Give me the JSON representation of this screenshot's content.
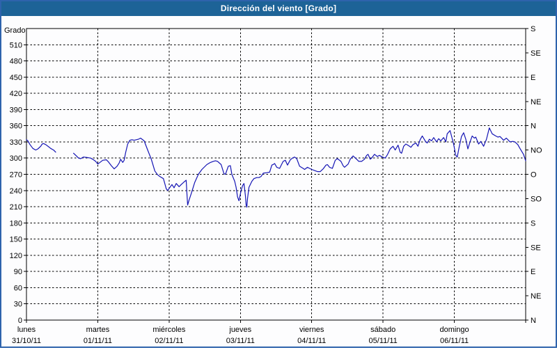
{
  "window": {
    "title": "Dirección del viento [Grado]"
  },
  "colors": {
    "title_bar_bg": "#1d6397",
    "title_text": "#ffffff",
    "frame_border": "#2e63ac",
    "plot_bg": "#fdfdfe",
    "grid": "#000000",
    "axis": "#000000",
    "line": "#1414b4"
  },
  "chart_data": {
    "type": "line",
    "title": "Dirección del viento [Grado]",
    "ylabel": "Grado",
    "xlabel": "",
    "ylim": [
      0,
      540
    ],
    "y_tick_step": 30,
    "grid": "dashed",
    "legend_position": "none",
    "y_tick_labels": [
      0,
      30,
      60,
      90,
      120,
      150,
      180,
      210,
      240,
      270,
      300,
      330,
      360,
      390,
      420,
      450,
      480,
      510
    ],
    "right_axis_labels": [
      {
        "deg": 0,
        "label": "N"
      },
      {
        "deg": 45,
        "label": "NE"
      },
      {
        "deg": 90,
        "label": "E"
      },
      {
        "deg": 135,
        "label": "SE"
      },
      {
        "deg": 180,
        "label": "S"
      },
      {
        "deg": 225,
        "label": "SO"
      },
      {
        "deg": 270,
        "label": "O"
      },
      {
        "deg": 315,
        "label": "NO"
      },
      {
        "deg": 360,
        "label": "N"
      },
      {
        "deg": 405,
        "label": "NE"
      },
      {
        "deg": 450,
        "label": "E"
      },
      {
        "deg": 495,
        "label": "SE"
      },
      {
        "deg": 540,
        "label": "S"
      }
    ],
    "x_categories": [
      {
        "day": "lunes",
        "date": "31/10/11"
      },
      {
        "day": "martes",
        "date": "01/11/11"
      },
      {
        "day": "miércoles",
        "date": "02/11/11"
      },
      {
        "day": "jueves",
        "date": "03/11/11"
      },
      {
        "day": "viernes",
        "date": "04/11/11"
      },
      {
        "day": "sábado",
        "date": "05/11/11"
      },
      {
        "day": "domingo",
        "date": "06/11/11"
      }
    ],
    "x_range_days": [
      0,
      7
    ],
    "series": [
      {
        "name": "Dirección del viento",
        "color": "#1414b4",
        "units": "Grado",
        "segments": [
          [
            [
              0,
              334
            ],
            [
              0.02,
              332
            ],
            [
              0.05,
              325
            ],
            [
              0.09,
              318
            ],
            [
              0.13,
              315
            ],
            [
              0.16,
              317
            ],
            [
              0.2,
              322
            ],
            [
              0.22,
              326
            ],
            [
              0.24,
              327
            ],
            [
              0.27,
              325
            ],
            [
              0.31,
              321
            ],
            [
              0.34,
              318
            ],
            [
              0.38,
              315
            ],
            [
              0.41,
              311
            ]
          ],
          [
            [
              0.66,
              309
            ],
            [
              0.7,
              304
            ],
            [
              0.73,
              300
            ],
            [
              0.76,
              299
            ],
            [
              0.8,
              302
            ],
            [
              0.85,
              301
            ],
            [
              0.9,
              300
            ],
            [
              0.94,
              297
            ],
            [
              0.97,
              294
            ],
            [
              1,
              289
            ],
            [
              1.04,
              293
            ],
            [
              1.07,
              296
            ],
            [
              1.12,
              297
            ],
            [
              1.15,
              293
            ],
            [
              1.19,
              286
            ],
            [
              1.23,
              280
            ],
            [
              1.27,
              285
            ],
            [
              1.3,
              291
            ],
            [
              1.32,
              298
            ],
            [
              1.35,
              292
            ],
            [
              1.37,
              296
            ],
            [
              1.39,
              310
            ],
            [
              1.42,
              326
            ],
            [
              1.45,
              333
            ],
            [
              1.48,
              334
            ],
            [
              1.51,
              333
            ],
            [
              1.54,
              334
            ],
            [
              1.57,
              335
            ],
            [
              1.6,
              337
            ],
            [
              1.65,
              332
            ],
            [
              1.7,
              315
            ],
            [
              1.75,
              298
            ],
            [
              1.8,
              276
            ],
            [
              1.84,
              269
            ],
            [
              1.87,
              266
            ],
            [
              1.92,
              262
            ],
            [
              1.96,
              243
            ],
            [
              1.98,
              240
            ],
            [
              2.04,
              251
            ],
            [
              2.07,
              245
            ],
            [
              2.1,
              253
            ],
            [
              2.14,
              247
            ],
            [
              2.17,
              251
            ],
            [
              2.22,
              257
            ],
            [
              2.24,
              259
            ],
            [
              2.25,
              234
            ],
            [
              2.26,
              213
            ],
            [
              2.28,
              222
            ],
            [
              2.31,
              234
            ],
            [
              2.36,
              255
            ],
            [
              2.41,
              270
            ],
            [
              2.46,
              279
            ],
            [
              2.53,
              288
            ],
            [
              2.58,
              292
            ],
            [
              2.62,
              294
            ],
            [
              2.65,
              295
            ],
            [
              2.68,
              294
            ],
            [
              2.73,
              288
            ],
            [
              2.77,
              271
            ],
            [
              2.79,
              270
            ],
            [
              2.83,
              285
            ],
            [
              2.86,
              286
            ],
            [
              2.88,
              270
            ],
            [
              2.92,
              257
            ],
            [
              2.94,
              246
            ],
            [
              2.96,
              228
            ],
            [
              2.98,
              221
            ],
            [
              3.01,
              240
            ],
            [
              3.03,
              249
            ],
            [
              3.05,
              253
            ],
            [
              3.07,
              230
            ],
            [
              3.08,
              213
            ],
            [
              3.09,
              209
            ],
            [
              3.1,
              225
            ],
            [
              3.12,
              246
            ],
            [
              3.16,
              257
            ],
            [
              3.19,
              262
            ],
            [
              3.23,
              264
            ],
            [
              3.26,
              264
            ],
            [
              3.29,
              266
            ],
            [
              3.32,
              272
            ],
            [
              3.37,
              273
            ],
            [
              3.41,
              274
            ],
            [
              3.44,
              287
            ],
            [
              3.47,
              289
            ],
            [
              3.48,
              290
            ],
            [
              3.51,
              283
            ],
            [
              3.55,
              281
            ],
            [
              3.6,
              294
            ],
            [
              3.63,
              296
            ],
            [
              3.66,
              287
            ],
            [
              3.7,
              297
            ],
            [
              3.73,
              300
            ],
            [
              3.76,
              302
            ],
            [
              3.79,
              299
            ],
            [
              3.83,
              285
            ],
            [
              3.88,
              281
            ],
            [
              3.9,
              279
            ],
            [
              3.94,
              283
            ],
            [
              3.97,
              281
            ],
            [
              4,
              279
            ],
            [
              4.04,
              277
            ],
            [
              4.08,
              275
            ],
            [
              4.12,
              275
            ],
            [
              4.16,
              280
            ],
            [
              4.2,
              287
            ],
            [
              4.22,
              288
            ],
            [
              4.25,
              283
            ],
            [
              4.29,
              281
            ],
            [
              4.33,
              296
            ],
            [
              4.36,
              299
            ],
            [
              4.41,
              294
            ],
            [
              4.44,
              286
            ],
            [
              4.46,
              283
            ],
            [
              4.51,
              289
            ],
            [
              4.54,
              298
            ],
            [
              4.58,
              304
            ],
            [
              4.63,
              298
            ],
            [
              4.66,
              294
            ],
            [
              4.7,
              294
            ],
            [
              4.74,
              298
            ],
            [
              4.77,
              305
            ],
            [
              4.79,
              307
            ],
            [
              4.82,
              298
            ],
            [
              4.84,
              300
            ],
            [
              4.88,
              307
            ],
            [
              4.92,
              303
            ],
            [
              4.95,
              305
            ],
            [
              4.99,
              302
            ],
            [
              5.03,
              300
            ],
            [
              5.06,
              306
            ],
            [
              5.1,
              317
            ],
            [
              5.14,
              322
            ],
            [
              5.17,
              315
            ],
            [
              5.21,
              324
            ],
            [
              5.24,
              311
            ],
            [
              5.26,
              309
            ],
            [
              5.29,
              322
            ],
            [
              5.32,
              326
            ],
            [
              5.36,
              323
            ],
            [
              5.39,
              320
            ],
            [
              5.42,
              325
            ],
            [
              5.46,
              328
            ],
            [
              5.49,
              322
            ],
            [
              5.52,
              334
            ],
            [
              5.55,
              341
            ],
            [
              5.6,
              330
            ],
            [
              5.62,
              328
            ],
            [
              5.65,
              335
            ],
            [
              5.68,
              332
            ],
            [
              5.71,
              338
            ],
            [
              5.75,
              330
            ],
            [
              5.78,
              336
            ],
            [
              5.81,
              332
            ],
            [
              5.85,
              338
            ],
            [
              5.88,
              330
            ],
            [
              5.9,
              345
            ],
            [
              5.94,
              351
            ],
            [
              5.99,
              326
            ],
            [
              6.02,
              305
            ],
            [
              6.04,
              302
            ],
            [
              6.07,
              322
            ],
            [
              6.1,
              340
            ],
            [
              6.13,
              347
            ],
            [
              6.16,
              335
            ],
            [
              6.19,
              317
            ],
            [
              6.22,
              330
            ],
            [
              6.25,
              341
            ],
            [
              6.28,
              337
            ],
            [
              6.3,
              339
            ],
            [
              6.34,
              326
            ],
            [
              6.37,
              331
            ],
            [
              6.41,
              322
            ],
            [
              6.45,
              335
            ],
            [
              6.49,
              356
            ],
            [
              6.53,
              345
            ],
            [
              6.58,
              341
            ],
            [
              6.61,
              339
            ],
            [
              6.64,
              340
            ],
            [
              6.67,
              336
            ],
            [
              6.69,
              333
            ],
            [
              6.73,
              337
            ],
            [
              6.78,
              330
            ],
            [
              6.82,
              331
            ],
            [
              6.85,
              330
            ],
            [
              6.89,
              325
            ],
            [
              6.92,
              318
            ],
            [
              6.97,
              307
            ],
            [
              7,
              295
            ]
          ]
        ]
      }
    ]
  }
}
